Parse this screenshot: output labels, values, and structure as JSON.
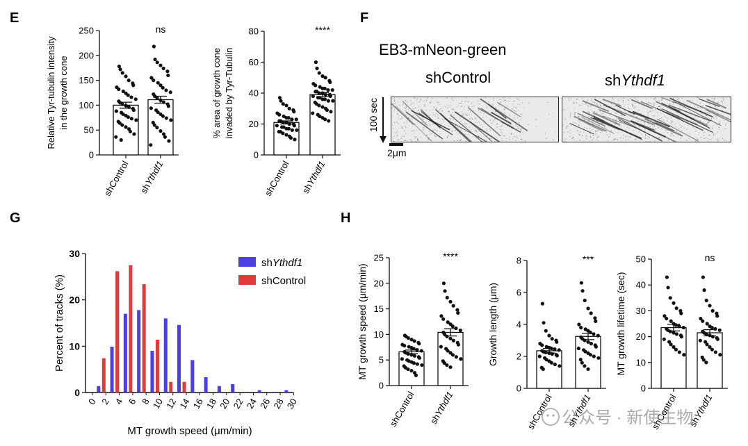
{
  "panels": {
    "E": "E",
    "F": "F",
    "G": "G",
    "H": "H"
  },
  "colors": {
    "shYthdf1": "#4b3ee6",
    "shControl": "#e23a3a",
    "dot": "#111111",
    "bar": "#ffffff"
  },
  "panel_f": {
    "title": "EB3-mNeon-green",
    "label_control": "shControl",
    "label_ythdf1_prefix": "sh",
    "label_ythdf1_gene": "Ythdf1",
    "time_label": "100 sec",
    "scale_label": "2μm"
  },
  "watermark": "公众号 · 新使生物",
  "chart_data": [
    {
      "id": "E1",
      "type": "bar",
      "ylabel_lines": [
        "Relative Tyr-tubulin intensity",
        "in the growth cone"
      ],
      "ylim": [
        0,
        250
      ],
      "yticks": [
        "0",
        "50",
        "100",
        "150",
        "200",
        "250"
      ],
      "categories": [
        {
          "prefix": "shControl",
          "gene": ""
        },
        {
          "prefix": "sh",
          "gene": "Ythdf1"
        }
      ],
      "values": [
        100,
        111
      ],
      "sem": [
        6,
        7
      ],
      "significance": "ns",
      "points": [
        [
          178,
          172,
          165,
          158,
          150,
          144,
          140,
          136,
          132,
          128,
          124,
          120,
          116,
          112,
          108,
          105,
          102,
          99,
          96,
          93,
          90,
          88,
          85,
          82,
          79,
          76,
          73,
          70,
          67,
          64,
          60,
          56,
          52,
          47,
          42,
          36,
          30
        ],
        [
          218,
          192,
          186,
          180,
          174,
          168,
          160,
          155,
          150,
          145,
          140,
          135,
          130,
          126,
          122,
          118,
          114,
          110,
          106,
          102,
          98,
          94,
          90,
          86,
          82,
          78,
          74,
          70,
          65,
          60,
          55,
          48,
          42,
          36,
          28,
          20
        ]
      ]
    },
    {
      "id": "E2",
      "type": "bar",
      "ylabel_lines": [
        "% area of growth cone",
        "invaded by Tyr-Tubulin"
      ],
      "ylim": [
        0,
        80
      ],
      "yticks": [
        "0",
        "20",
        "40",
        "60",
        "80"
      ],
      "categories": [
        {
          "prefix": "shControl",
          "gene": ""
        },
        {
          "prefix": "sh",
          "gene": "Ythdf1"
        }
      ],
      "values": [
        21,
        39
      ],
      "sem": [
        1,
        1.3
      ],
      "significance": "****",
      "points": [
        [
          37,
          35,
          33,
          32,
          30,
          29,
          28,
          27,
          26,
          25,
          24,
          24,
          23,
          23,
          22,
          22,
          21,
          21,
          20,
          20,
          19,
          19,
          18,
          18,
          17,
          17,
          16,
          16,
          15,
          15,
          14,
          13,
          12,
          11,
          10
        ],
        [
          60,
          56,
          53,
          51,
          50,
          48,
          47,
          46,
          45,
          44,
          43,
          43,
          42,
          42,
          41,
          41,
          40,
          40,
          39,
          39,
          38,
          38,
          37,
          37,
          36,
          36,
          35,
          35,
          34,
          33,
          32,
          31,
          30,
          29,
          28,
          27,
          26,
          25,
          24,
          23,
          22
        ]
      ]
    },
    {
      "id": "G",
      "type": "bar",
      "xlabel": "MT growth speed (μm/min)",
      "ylabel": "Percent of tracks (%)",
      "ylim": [
        0,
        30
      ],
      "yticks": [
        "0",
        "10",
        "20",
        "30"
      ],
      "xticks": [
        "0",
        "2",
        "4",
        "6",
        "8",
        "10",
        "12",
        "14",
        "16",
        "18",
        "20",
        "22",
        "24",
        "26",
        "28",
        "30"
      ],
      "legend": {
        "position": "top-right",
        "items": [
          {
            "prefix": "sh",
            "gene": "Ythdf1",
            "color": "#4b3ee6"
          },
          {
            "prefix": "shControl",
            "gene": "",
            "color": "#e23a3a"
          }
        ]
      },
      "series": [
        {
          "name": "shYthdf1",
          "bins": [
            2,
            4,
            6,
            8,
            10,
            12,
            14,
            16,
            18,
            20,
            22,
            24,
            26,
            28,
            30
          ],
          "values": [
            1.4,
            9.9,
            17,
            17.8,
            9,
            16,
            14.6,
            7,
            3.3,
            1.4,
            1.8,
            0,
            0.5,
            0,
            0.5
          ]
        },
        {
          "name": "shControl",
          "bins": [
            2,
            4,
            6,
            8,
            10,
            12,
            14,
            16,
            18,
            20,
            22,
            24,
            26,
            28,
            30
          ],
          "values": [
            7.4,
            26.2,
            27.5,
            23.4,
            11.4,
            2.3,
            2.3,
            0,
            0,
            0,
            0,
            0,
            0,
            0,
            0
          ]
        }
      ]
    },
    {
      "id": "H1",
      "type": "bar",
      "ylabel": "MT growth speed (μm/min)",
      "ylim": [
        0,
        25
      ],
      "yticks": [
        "0",
        "5",
        "10",
        "15",
        "20",
        "25"
      ],
      "categories": [
        {
          "prefix": "shControl",
          "gene": ""
        },
        {
          "prefix": "sh",
          "gene": "Ythdf1"
        }
      ],
      "values": [
        6.6,
        10.4
      ],
      "sem": [
        0.35,
        0.7
      ],
      "significance": "****",
      "points": [
        [
          9.8,
          9.6,
          9.3,
          9,
          8.7,
          8.4,
          8.2,
          8,
          7.8,
          7.6,
          7.4,
          7.2,
          7,
          6.8,
          6.6,
          6.4,
          6.2,
          6,
          5.8,
          5.6,
          5.4,
          5.2,
          5,
          4.8,
          4.6,
          4.4,
          4.2,
          4,
          3.8,
          3.5,
          3.2,
          2.9,
          2.5,
          2
        ],
        [
          20,
          18.5,
          17.2,
          16.4,
          15.6,
          14.8,
          14.2,
          13.6,
          13,
          12.4,
          12,
          11.6,
          11.2,
          10.8,
          10.4,
          10,
          9.6,
          9.2,
          8.8,
          8.4,
          8,
          7.6,
          7.2,
          6.8,
          6.4,
          6,
          5.6,
          5.2,
          4.8,
          4.4,
          4,
          3.6
        ]
      ]
    },
    {
      "id": "H2",
      "type": "bar",
      "ylabel": "Growth length (μm)",
      "ylim": [
        0,
        8
      ],
      "yticks": [
        "0",
        "2",
        "4",
        "6",
        "8"
      ],
      "categories": [
        {
          "prefix": "shControl",
          "gene": ""
        },
        {
          "prefix": "sh",
          "gene": "Ythdf1"
        }
      ],
      "values": [
        2.35,
        3.25
      ],
      "sem": [
        0.14,
        0.2
      ],
      "significance": "***",
      "points": [
        [
          5.3,
          4.1,
          3.6,
          3.3,
          3.1,
          3,
          2.9,
          2.8,
          2.7,
          2.6,
          2.55,
          2.5,
          2.45,
          2.4,
          2.35,
          2.3,
          2.25,
          2.2,
          2.15,
          2.1,
          2.05,
          2,
          1.9,
          1.8,
          1.7,
          1.6,
          1.5,
          1.4,
          1.3,
          1.2
        ],
        [
          6.6,
          6.1,
          5.5,
          5,
          4.7,
          4.4,
          4.2,
          4,
          3.8,
          3.7,
          3.6,
          3.5,
          3.4,
          3.3,
          3.2,
          3.1,
          3,
          2.9,
          2.8,
          2.7,
          2.6,
          2.5,
          2.4,
          2.3,
          2.2,
          2.1,
          2,
          1.9,
          1.8,
          1.6,
          1.4,
          1.2
        ]
      ]
    },
    {
      "id": "H3",
      "type": "bar",
      "ylabel": "MT growth lifetime (sec)",
      "ylim": [
        0,
        50
      ],
      "yticks": [
        "0",
        "10",
        "20",
        "30",
        "40",
        "50"
      ],
      "categories": [
        {
          "prefix": "shControl",
          "gene": ""
        },
        {
          "prefix": "sh",
          "gene": "Ythdf1"
        }
      ],
      "values": [
        23.5,
        21.5
      ],
      "sem": [
        1.3,
        1.2
      ],
      "significance": "ns",
      "points": [
        [
          43,
          39,
          35,
          33,
          31,
          30,
          29,
          28,
          27,
          26,
          25,
          24.5,
          24,
          23.5,
          23,
          22.5,
          22,
          21.5,
          21,
          20.5,
          20,
          19,
          18,
          17,
          16,
          15,
          14,
          13
        ],
        [
          43,
          38,
          34,
          32,
          30,
          29,
          28,
          27,
          26,
          25,
          24,
          23.5,
          23,
          22.5,
          22,
          21.5,
          21,
          20.5,
          20,
          19.5,
          19,
          18.5,
          18,
          17,
          16,
          15,
          14,
          13,
          12,
          11,
          10
        ]
      ]
    }
  ]
}
